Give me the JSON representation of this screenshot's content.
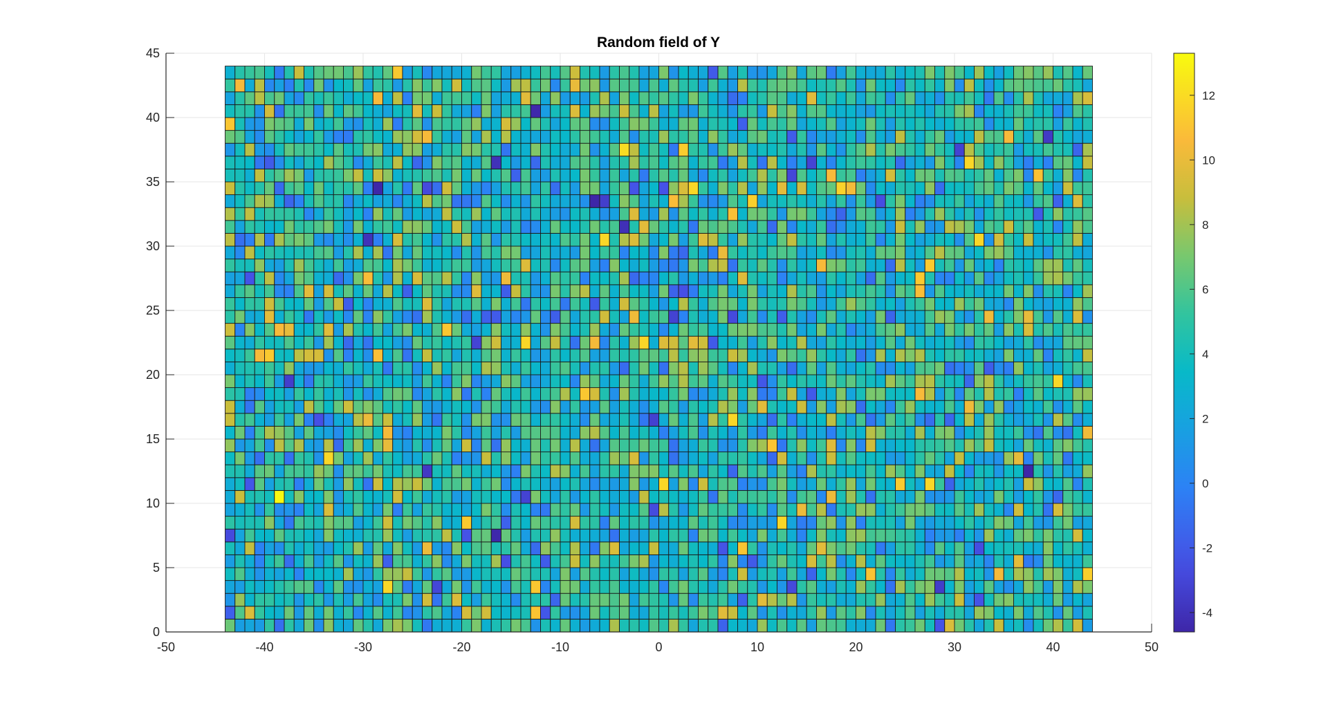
{
  "chart_data": {
    "type": "heatmap",
    "title": "Random field of Y",
    "xlabel": "",
    "ylabel": "",
    "xlim": [
      -50,
      50
    ],
    "ylim": [
      0,
      45
    ],
    "x_ticks": [
      -50,
      -40,
      -30,
      -20,
      -10,
      0,
      10,
      20,
      30,
      40,
      50
    ],
    "y_ticks": [
      0,
      5,
      10,
      15,
      20,
      25,
      30,
      35,
      40,
      45
    ],
    "grid": true,
    "colormap": "parula",
    "colorbar": {
      "placement": "right",
      "range": [
        -4.6,
        13.3
      ],
      "ticks": [
        -4,
        -2,
        0,
        2,
        4,
        6,
        8,
        10,
        12
      ]
    },
    "cells": {
      "x_range": [
        -44,
        44
      ],
      "y_range": [
        0,
        44
      ],
      "columns": 88,
      "rows": 44,
      "value_range": [
        -4.6,
        13.3
      ],
      "mean": 4.2,
      "std": 2.7,
      "random_seed": 20240611,
      "hotspots": [
        {
          "x": -38.5,
          "y": 10.5,
          "value": 13.2
        },
        {
          "x": -3.5,
          "y": 37.5,
          "value": 12.0
        },
        {
          "x": -26.5,
          "y": 43.5,
          "value": 11.2
        },
        {
          "x": 21.5,
          "y": 4.5,
          "value": 11.0
        },
        {
          "x": 26.5,
          "y": 26.5,
          "value": 10.8
        },
        {
          "x": 17.5,
          "y": 35.5,
          "value": 10.6
        },
        {
          "x": -42.5,
          "y": 42.5,
          "value": 10.5
        },
        {
          "x": -40.5,
          "y": 21.5,
          "value": 10.5
        },
        {
          "x": 34.5,
          "y": 4.5,
          "value": 10.4
        },
        {
          "x": -16.5,
          "y": 7.5,
          "value": -4.5
        },
        {
          "x": -16.5,
          "y": 36.5,
          "value": -4.0
        },
        {
          "x": 39.5,
          "y": 38.5,
          "value": -3.6
        },
        {
          "x": -0.5,
          "y": 16.5,
          "value": -3.2
        }
      ]
    }
  }
}
